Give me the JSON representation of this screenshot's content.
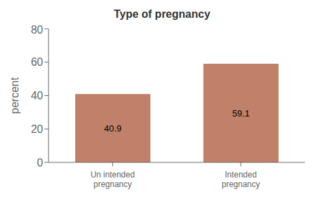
{
  "chart_data": {
    "type": "bar",
    "title": "Type of pregnancy",
    "categories": [
      "Un intended\npregnancy",
      "Intended\npregnancy"
    ],
    "values": [
      40.9,
      59.1
    ],
    "color": "#C0806A",
    "ylabel": "percent",
    "ylim": [
      0,
      80
    ],
    "yticks": [
      0,
      20,
      40,
      60,
      80
    ],
    "data_labels": true,
    "grid": false
  }
}
